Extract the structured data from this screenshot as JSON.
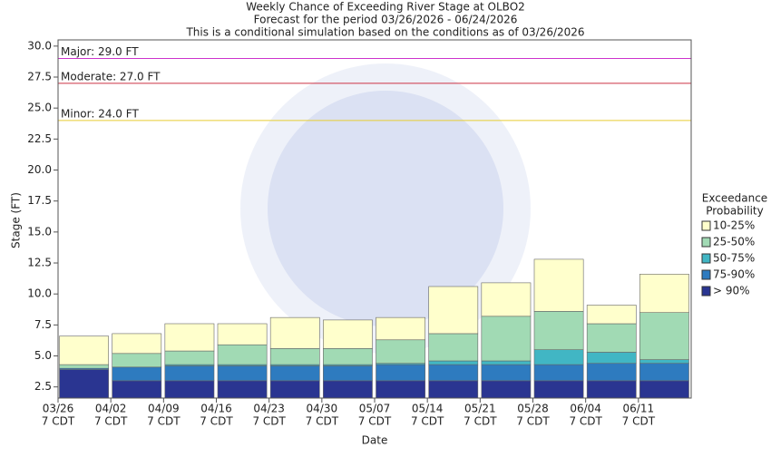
{
  "chart_data": {
    "type": "range-bar",
    "title": [
      "Weekly Chance of Exceeding River Stage at OLBO2",
      "Forecast for the period 03/26/2026 - 06/24/2026",
      "This is a conditional simulation based on the conditions as of 03/26/2026"
    ],
    "x_label": "Date",
    "y_label": "Stage (FT)",
    "categories": [
      "03/26",
      "04/02",
      "04/09",
      "04/16",
      "04/23",
      "04/30",
      "05/07",
      "05/14",
      "05/21",
      "05/28",
      "06/04",
      "06/11"
    ],
    "category_sublabel": "7 CDT",
    "legend_title": [
      "Exceedance",
      "Probability"
    ],
    "series": [
      {
        "name": "> 90%",
        "color": "#2a3591",
        "values": [
          3.9,
          3.0,
          3.0,
          3.0,
          3.0,
          3.0,
          3.0,
          3.0,
          3.0,
          3.0,
          3.0,
          3.0
        ]
      },
      {
        "name": "75-90%",
        "color": "#2e7bbf",
        "values": [
          4.0,
          4.1,
          4.2,
          4.2,
          4.2,
          4.2,
          4.3,
          4.3,
          4.3,
          4.3,
          4.4,
          4.4
        ]
      },
      {
        "name": "50-75%",
        "color": "#41b6c4",
        "values": [
          4.0,
          4.1,
          4.3,
          4.3,
          4.3,
          4.3,
          4.4,
          4.6,
          4.6,
          5.5,
          5.3,
          4.7
        ]
      },
      {
        "name": "25-50%",
        "color": "#a1dab4",
        "values": [
          4.3,
          5.2,
          5.4,
          5.9,
          5.6,
          5.6,
          6.3,
          6.8,
          8.2,
          8.6,
          7.6,
          8.5
        ]
      },
      {
        "name": "10-25%",
        "color": "#ffffcc",
        "values": [
          6.6,
          6.8,
          7.6,
          7.6,
          8.1,
          7.9,
          8.1,
          10.6,
          10.9,
          12.8,
          9.1,
          11.6
        ]
      }
    ],
    "flood_levels": [
      {
        "label": "Major: 29.0 FT",
        "value": 29,
        "color": "#cc33cc"
      },
      {
        "label": "Moderate: 27.0 FT",
        "value": 27,
        "color": "#cc3344"
      },
      {
        "label": "Minor: 24.0 FT",
        "value": 24,
        "color": "#e6cc33"
      }
    ],
    "ylim": [
      1.6,
      30.5
    ],
    "yticks": [
      2.5,
      {
        "value": 5,
        "label": "5.0"
      },
      7.5,
      {
        "value": 10,
        "label": "10.0"
      },
      12.5,
      {
        "value": 15,
        "label": "15.0"
      },
      17.5,
      {
        "value": 20,
        "label": "20.0"
      },
      22.5,
      {
        "value": 25,
        "label": "25.0"
      },
      27.5,
      {
        "value": 30,
        "label": "30.0"
      }
    ]
  }
}
